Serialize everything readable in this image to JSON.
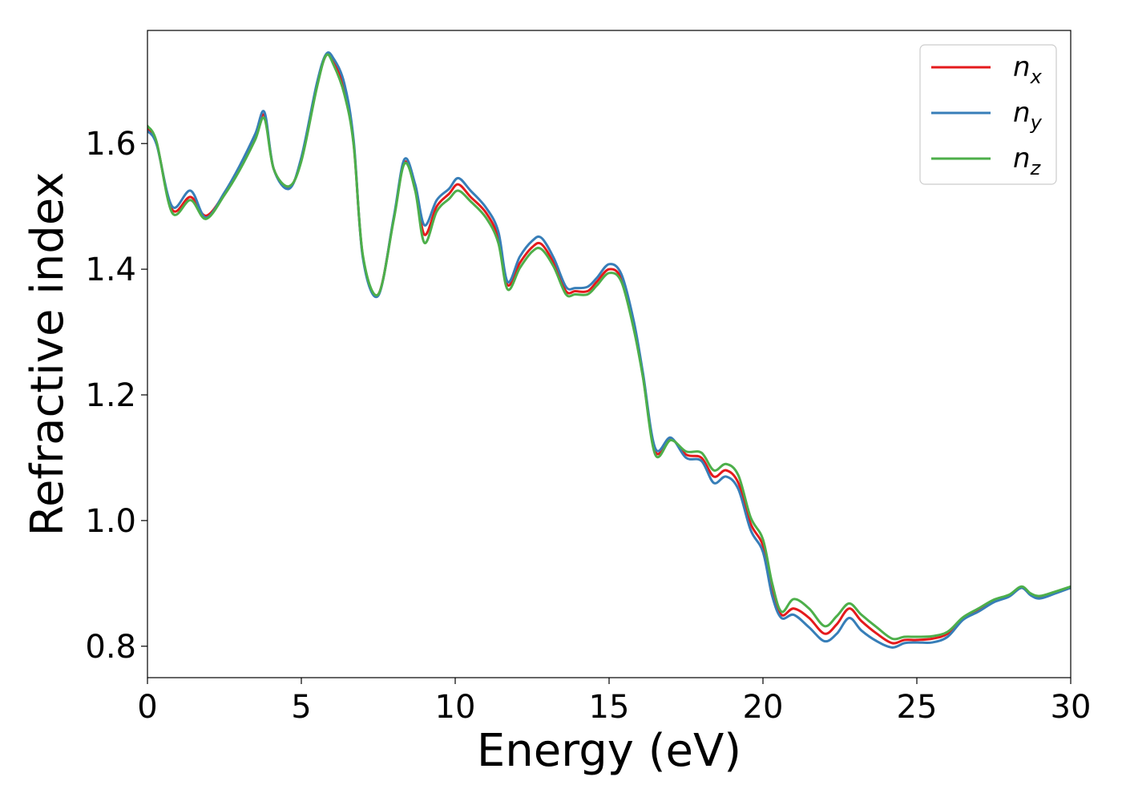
{
  "chart_data": {
    "type": "line",
    "title": "",
    "xlabel": "Energy (eV)",
    "ylabel": "Refractive index",
    "xlim": [
      0,
      30
    ],
    "ylim": [
      0.75,
      1.78
    ],
    "xticks": [
      0,
      5,
      10,
      15,
      20,
      25,
      30
    ],
    "yticks": [
      0.8,
      1.0,
      1.2,
      1.4,
      1.6
    ],
    "xtick_labels": [
      "0",
      "5",
      "10",
      "15",
      "20",
      "25",
      "30"
    ],
    "ytick_labels": [
      "0.8",
      "1.0",
      "1.2",
      "1.4",
      "1.6"
    ],
    "grid": false,
    "legend_position": "top-right",
    "x": [
      0,
      0.3,
      0.8,
      1.4,
      1.9,
      2.5,
      3.0,
      3.5,
      3.8,
      4.1,
      4.6,
      5.0,
      5.5,
      5.8,
      6.05,
      6.4,
      6.7,
      7.0,
      7.5,
      8.0,
      8.35,
      8.7,
      9.0,
      9.4,
      9.8,
      10.1,
      10.5,
      11.0,
      11.4,
      11.7,
      12.1,
      12.5,
      12.8,
      13.2,
      13.6,
      13.9,
      14.3,
      14.6,
      15.0,
      15.4,
      15.8,
      16.1,
      16.5,
      17.0,
      17.5,
      18.0,
      18.4,
      18.8,
      19.2,
      19.6,
      20.0,
      20.3,
      20.6,
      21.0,
      21.5,
      22.0,
      22.4,
      22.8,
      23.2,
      23.7,
      24.2,
      24.6,
      25.0,
      25.5,
      26.0,
      26.5,
      27.0,
      27.5,
      28.0,
      28.4,
      28.7,
      29.0,
      29.5,
      30.0
    ],
    "series": [
      {
        "name": "n_x",
        "label_base": "n",
        "label_sub": "x",
        "color": "#e41a1c",
        "values": [
          1.625,
          1.6,
          1.495,
          1.515,
          1.485,
          1.52,
          1.56,
          1.61,
          1.645,
          1.56,
          1.53,
          1.575,
          1.69,
          1.74,
          1.73,
          1.685,
          1.6,
          1.42,
          1.36,
          1.48,
          1.57,
          1.53,
          1.455,
          1.5,
          1.52,
          1.535,
          1.515,
          1.49,
          1.45,
          1.375,
          1.41,
          1.435,
          1.44,
          1.41,
          1.365,
          1.365,
          1.365,
          1.38,
          1.4,
          1.385,
          1.31,
          1.23,
          1.11,
          1.13,
          1.105,
          1.1,
          1.07,
          1.08,
          1.06,
          0.995,
          0.96,
          0.89,
          0.85,
          0.86,
          0.845,
          0.82,
          0.835,
          0.86,
          0.84,
          0.82,
          0.805,
          0.81,
          0.81,
          0.812,
          0.82,
          0.845,
          0.858,
          0.872,
          0.88,
          0.893,
          0.882,
          0.878,
          0.885,
          0.893
        ]
      },
      {
        "name": "n_y",
        "label_base": "n",
        "label_sub": "y",
        "color": "#377eb8",
        "values": [
          1.62,
          1.598,
          1.5,
          1.525,
          1.482,
          1.522,
          1.565,
          1.615,
          1.65,
          1.56,
          1.528,
          1.578,
          1.695,
          1.742,
          1.735,
          1.695,
          1.605,
          1.418,
          1.358,
          1.482,
          1.575,
          1.535,
          1.47,
          1.51,
          1.528,
          1.545,
          1.525,
          1.498,
          1.46,
          1.38,
          1.42,
          1.445,
          1.45,
          1.418,
          1.372,
          1.37,
          1.372,
          1.386,
          1.408,
          1.392,
          1.318,
          1.235,
          1.115,
          1.132,
          1.1,
          1.095,
          1.06,
          1.07,
          1.05,
          0.985,
          0.95,
          0.88,
          0.845,
          0.85,
          0.83,
          0.808,
          0.82,
          0.845,
          0.825,
          0.808,
          0.798,
          0.805,
          0.806,
          0.806,
          0.815,
          0.842,
          0.855,
          0.87,
          0.879,
          0.893,
          0.881,
          0.876,
          0.884,
          0.893
        ]
      },
      {
        "name": "n_z",
        "label_base": "n",
        "label_sub": "z",
        "color": "#4daf4a",
        "values": [
          1.628,
          1.602,
          1.49,
          1.51,
          1.48,
          1.518,
          1.558,
          1.606,
          1.64,
          1.56,
          1.532,
          1.572,
          1.688,
          1.74,
          1.725,
          1.678,
          1.598,
          1.422,
          1.36,
          1.478,
          1.568,
          1.525,
          1.442,
          1.492,
          1.512,
          1.525,
          1.508,
          1.482,
          1.442,
          1.368,
          1.402,
          1.428,
          1.432,
          1.404,
          1.36,
          1.36,
          1.36,
          1.374,
          1.394,
          1.38,
          1.305,
          1.228,
          1.105,
          1.128,
          1.11,
          1.108,
          1.08,
          1.09,
          1.072,
          1.005,
          0.97,
          0.9,
          0.855,
          0.875,
          0.86,
          0.832,
          0.848,
          0.868,
          0.85,
          0.83,
          0.812,
          0.815,
          0.815,
          0.816,
          0.823,
          0.846,
          0.86,
          0.874,
          0.882,
          0.895,
          0.884,
          0.88,
          0.887,
          0.895
        ]
      }
    ]
  }
}
